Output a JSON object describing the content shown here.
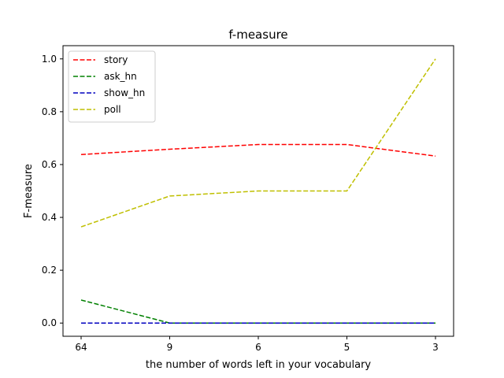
{
  "chart_data": {
    "type": "line",
    "title": "f-measure",
    "xlabel": "the number of words left in your vocabulary",
    "ylabel": "F-measure",
    "categories": [
      "64",
      "9",
      "6",
      "5",
      "3"
    ],
    "ylim": [
      -0.05,
      1.05
    ],
    "yticks": [
      0.0,
      0.2,
      0.4,
      0.6,
      0.8,
      1.0
    ],
    "ytick_labels": [
      "0.0",
      "0.2",
      "0.4",
      "0.6",
      "0.8",
      "1.0"
    ],
    "grid": false,
    "legend_position": "top-left",
    "series": [
      {
        "name": "story",
        "color": "#ff0000",
        "line_style": "dashed",
        "values": [
          0.638,
          0.658,
          0.676,
          0.676,
          0.632
        ]
      },
      {
        "name": "ask_hn",
        "color": "#008000",
        "line_style": "dashed",
        "values": [
          0.087,
          0.0,
          0.0,
          0.0,
          0.0
        ]
      },
      {
        "name": "show_hn",
        "color": "#0000bf",
        "line_style": "dashed",
        "values": [
          0.0,
          0.0,
          0.0,
          0.0,
          0.0
        ]
      },
      {
        "name": "poll",
        "color": "#bfbf00",
        "line_style": "dashed",
        "values": [
          0.364,
          0.481,
          0.5,
          0.5,
          1.0
        ]
      }
    ]
  }
}
